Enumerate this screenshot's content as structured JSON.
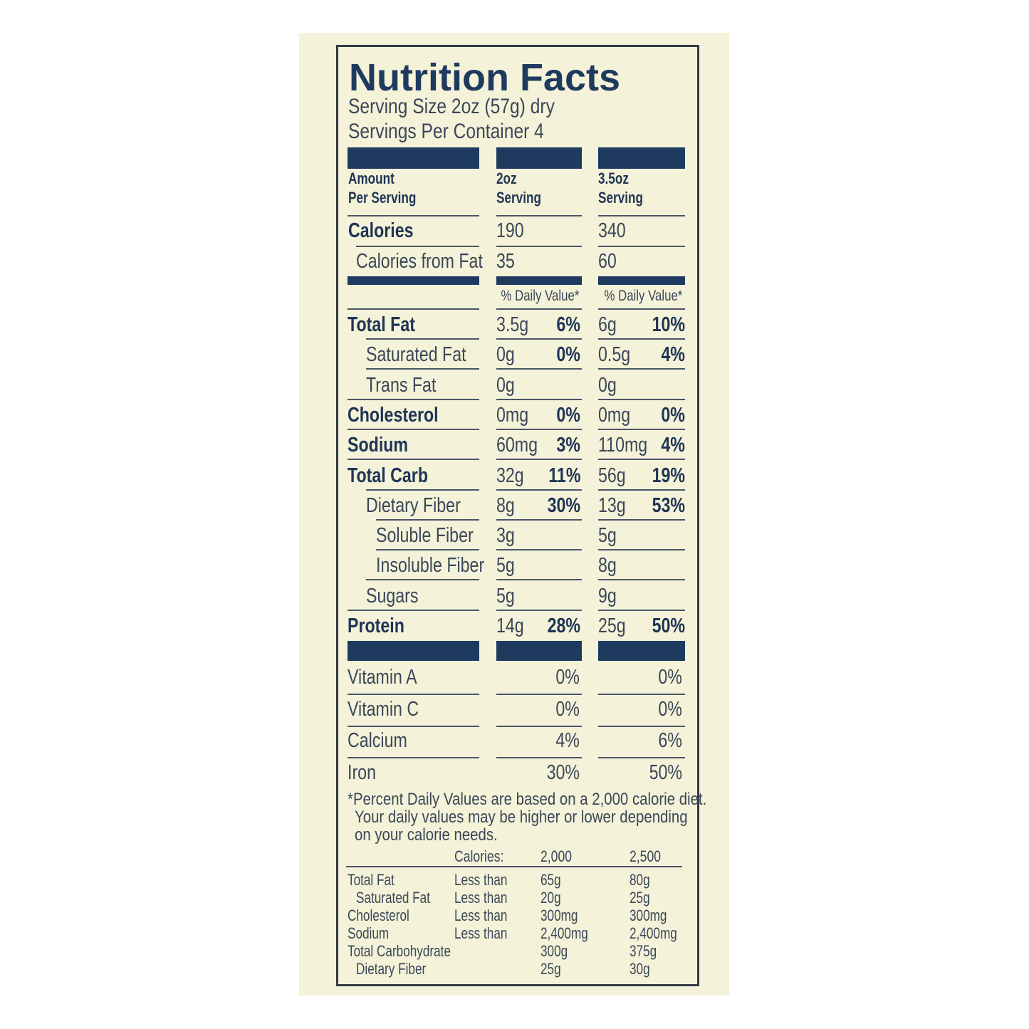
{
  "title": "Nutrition Facts",
  "serving_size": "Serving Size 2oz (57g) dry",
  "servings_per_container": "Servings Per Container 4",
  "header": {
    "amount_line1": "Amount",
    "amount_line2": "Per Serving",
    "col1_line1": "2oz",
    "col1_line2": "Serving",
    "col2_line1": "3.5oz",
    "col2_line2": "Serving"
  },
  "calories": {
    "label": "Calories",
    "v1": "190",
    "v2": "340"
  },
  "calories_fat": {
    "label": "Calories from Fat",
    "v1": "35",
    "v2": "60"
  },
  "daily_value_label": "% Daily Value*",
  "nutrients": [
    {
      "label": "Total Fat",
      "level": 0,
      "v1": "3.5g",
      "p1": "6%",
      "v2": "6g",
      "p2": "10%"
    },
    {
      "label": "Saturated Fat",
      "level": 1,
      "v1": "0g",
      "p1": "0%",
      "v2": "0.5g",
      "p2": "4%"
    },
    {
      "label": "Trans Fat",
      "level": 1,
      "v1": "0g",
      "p1": "",
      "v2": "0g",
      "p2": ""
    },
    {
      "label": "Cholesterol",
      "level": 0,
      "v1": "0mg",
      "p1": "0%",
      "v2": "0mg",
      "p2": "0%"
    },
    {
      "label": "Sodium",
      "level": 0,
      "v1": "60mg",
      "p1": "3%",
      "v2": "110mg",
      "p2": "4%"
    },
    {
      "label": "Total Carb",
      "level": 0,
      "v1": "32g",
      "p1": "11%",
      "v2": "56g",
      "p2": "19%"
    },
    {
      "label": "Dietary Fiber",
      "level": 1,
      "v1": "8g",
      "p1": "30%",
      "v2": "13g",
      "p2": "53%"
    },
    {
      "label": "Soluble Fiber",
      "level": 2,
      "v1": "3g",
      "p1": "",
      "v2": "5g",
      "p2": ""
    },
    {
      "label": "Insoluble Fiber",
      "level": 2,
      "v1": "5g",
      "p1": "",
      "v2": "8g",
      "p2": ""
    },
    {
      "label": "Sugars",
      "level": 1,
      "v1": "5g",
      "p1": "",
      "v2": "9g",
      "p2": ""
    },
    {
      "label": "Protein",
      "level": 0,
      "v1": "14g",
      "p1": "28%",
      "v2": "25g",
      "p2": "50%"
    }
  ],
  "vitamins": [
    {
      "label": "Vitamin A",
      "p1": "0%",
      "p2": "0%"
    },
    {
      "label": "Vitamin C",
      "p1": "0%",
      "p2": "0%"
    },
    {
      "label": "Calcium",
      "p1": "4%",
      "p2": "6%"
    },
    {
      "label": "Iron",
      "p1": "30%",
      "p2": "50%"
    }
  ],
  "footnote": [
    "*Percent Daily Values are based on a 2,000 calorie diet.",
    "Your daily values may be higher or lower depending",
    "on your calorie needs."
  ],
  "reference": {
    "header": [
      "Calories:",
      "2,000",
      "2,500"
    ],
    "rows": [
      {
        "label": "Total Fat",
        "indent": false,
        "qual": "Less than",
        "a": "65g",
        "b": "80g"
      },
      {
        "label": "Saturated Fat",
        "indent": true,
        "qual": "Less than",
        "a": "20g",
        "b": "25g"
      },
      {
        "label": "Cholesterol",
        "indent": false,
        "qual": "Less than",
        "a": "300mg",
        "b": "300mg"
      },
      {
        "label": "Sodium",
        "indent": false,
        "qual": "Less than",
        "a": "2,400mg",
        "b": "2,400mg"
      },
      {
        "label": "Total Carbohydrate",
        "indent": false,
        "qual": "",
        "a": "300g",
        "b": "375g"
      },
      {
        "label": "Dietary Fiber",
        "indent": true,
        "qual": "",
        "a": "25g",
        "b": "30g"
      }
    ]
  },
  "colors": {
    "ink": "#1f3a5f",
    "background": "#f4f2d8"
  }
}
